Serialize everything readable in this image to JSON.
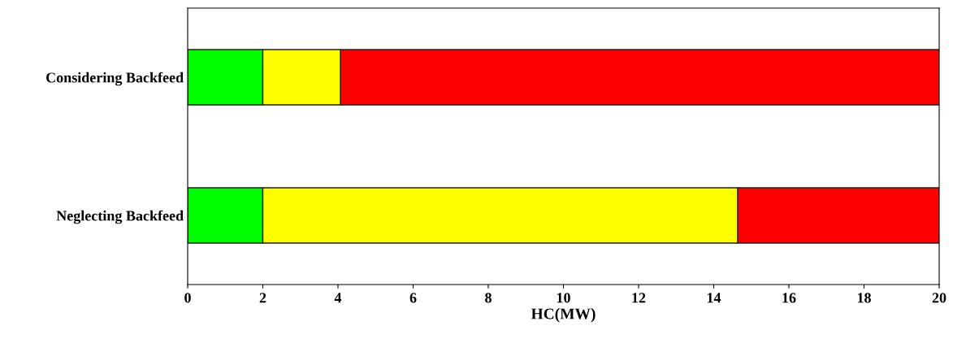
{
  "chart_data": {
    "type": "bar",
    "orientation": "horizontal",
    "stacked": true,
    "xlabel": "HC(MW)",
    "categories": [
      "Considering Backfeed",
      "Neglecting Backfeed"
    ],
    "series": [
      {
        "color": "#00ff00",
        "values": [
          2,
          2
        ]
      },
      {
        "color": "#ffff00",
        "values": [
          2.07,
          12.64
        ]
      },
      {
        "color": "#ff0000",
        "values": [
          15.93,
          5.36
        ]
      }
    ],
    "xlim": [
      0,
      20
    ],
    "xticks": [
      0,
      2,
      4,
      6,
      8,
      10,
      12,
      14,
      16,
      18,
      20
    ],
    "grid": false,
    "legend": false
  }
}
